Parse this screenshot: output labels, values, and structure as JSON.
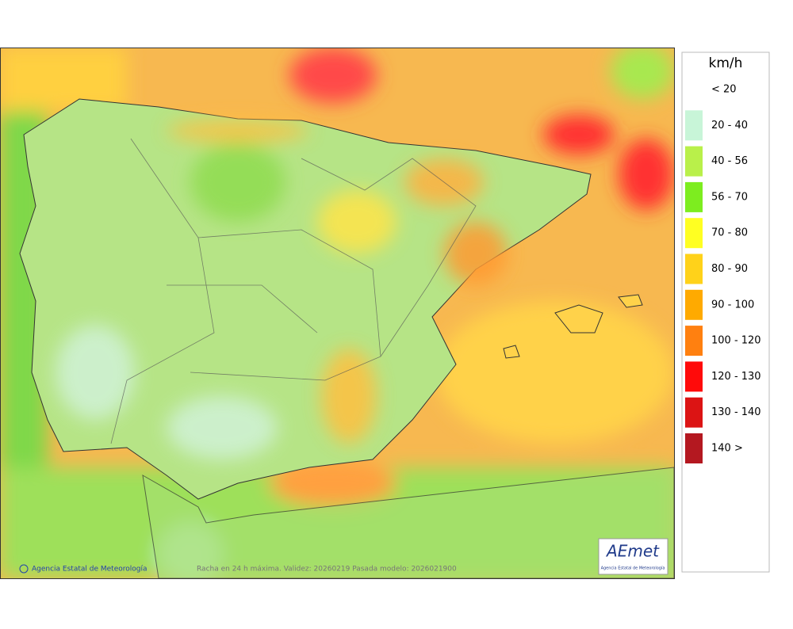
{
  "legend": {
    "title": "km/h",
    "items": [
      "< 20",
      "20 - 40",
      "40 - 56",
      "56 - 70",
      "70 - 80",
      "80 - 90",
      "90 - 100",
      "100 - 120",
      "120 - 130",
      "130 - 140",
      "140 >"
    ]
  },
  "map": {
    "copyright": "Agencia Estatal de Meteorología",
    "caption": "Racha en 24 h máxima. Validez: 20260219 Pasada modelo: 2026021900"
  },
  "logo": {
    "name": "AEmet",
    "subtitle": "Agencia Estatal de Meteorología"
  }
}
